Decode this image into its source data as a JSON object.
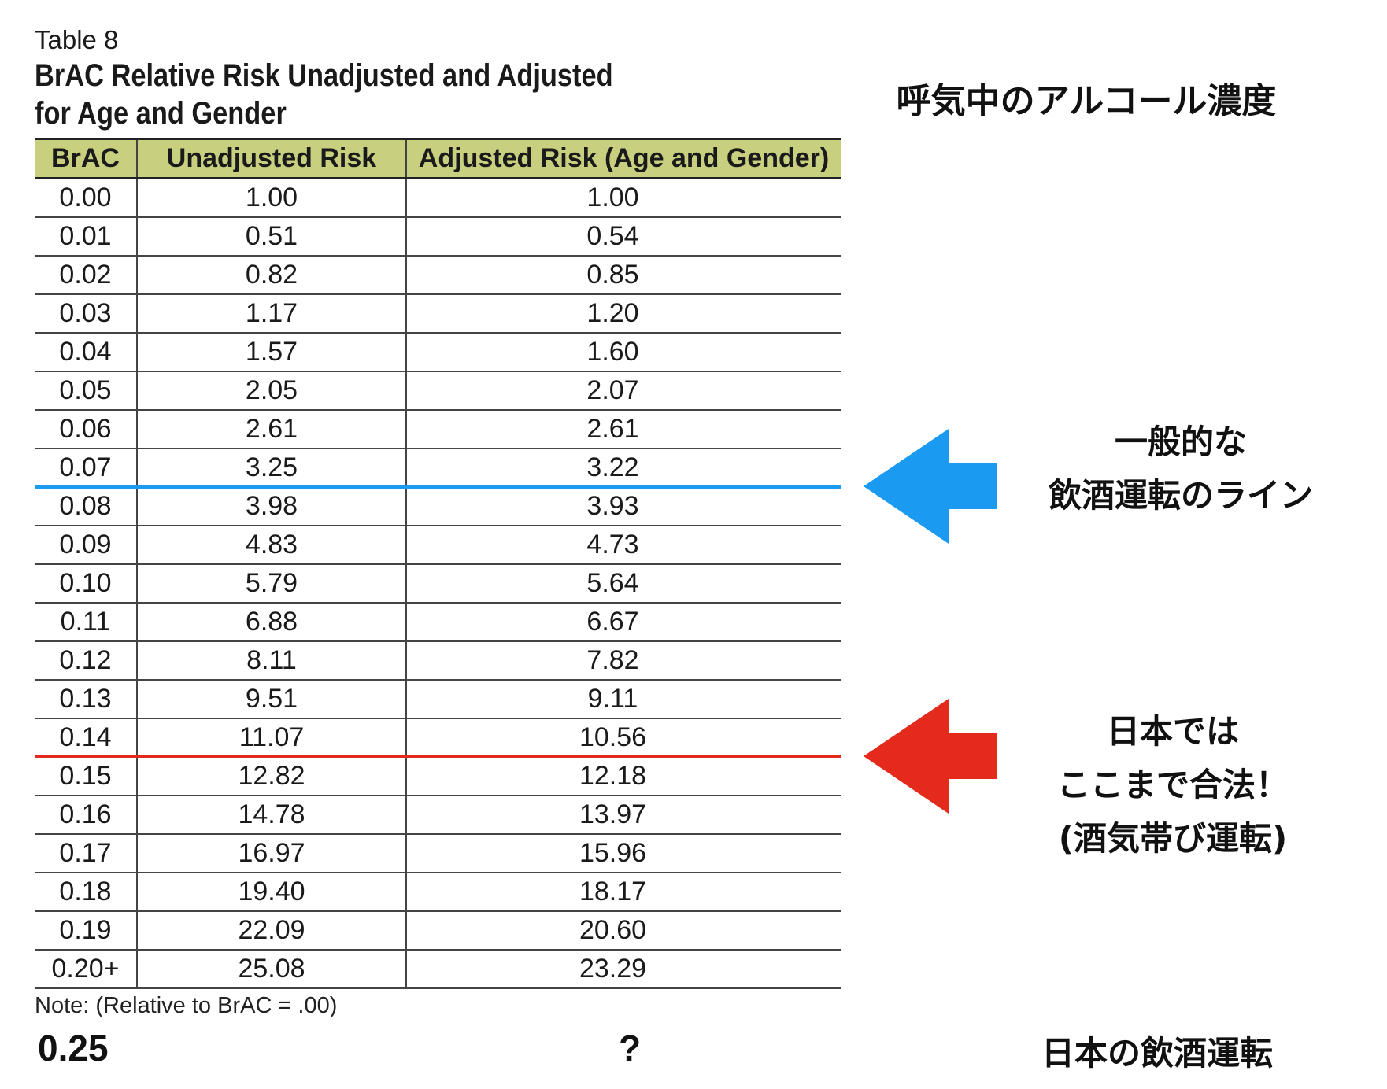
{
  "table_label": "Table 8",
  "table_title": "BrAC Relative Risk Unadjusted and Adjusted for Age and Gender",
  "headers": {
    "brac": "BrAC",
    "unadjusted": "Unadjusted Risk",
    "adjusted": "Adjusted Risk (Age and Gender)"
  },
  "rows": [
    {
      "brac": "0.00",
      "unadjusted": "1.00",
      "adjusted": "1.00"
    },
    {
      "brac": "0.01",
      "unadjusted": "0.51",
      "adjusted": "0.54"
    },
    {
      "brac": "0.02",
      "unadjusted": "0.82",
      "adjusted": "0.85"
    },
    {
      "brac": "0.03",
      "unadjusted": "1.17",
      "adjusted": "1.20"
    },
    {
      "brac": "0.04",
      "unadjusted": "1.57",
      "adjusted": "1.60"
    },
    {
      "brac": "0.05",
      "unadjusted": "2.05",
      "adjusted": "2.07"
    },
    {
      "brac": "0.06",
      "unadjusted": "2.61",
      "adjusted": "2.61"
    },
    {
      "brac": "0.07",
      "unadjusted": "3.25",
      "adjusted": "3.22"
    },
    {
      "brac": "0.08",
      "unadjusted": "3.98",
      "adjusted": "3.93"
    },
    {
      "brac": "0.09",
      "unadjusted": "4.83",
      "adjusted": "4.73"
    },
    {
      "brac": "0.10",
      "unadjusted": "5.79",
      "adjusted": "5.64"
    },
    {
      "brac": "0.11",
      "unadjusted": "6.88",
      "adjusted": "6.67"
    },
    {
      "brac": "0.12",
      "unadjusted": "8.11",
      "adjusted": "7.82"
    },
    {
      "brac": "0.13",
      "unadjusted": "9.51",
      "adjusted": "9.11"
    },
    {
      "brac": "0.14",
      "unadjusted": "11.07",
      "adjusted": "10.56"
    },
    {
      "brac": "0.15",
      "unadjusted": "12.82",
      "adjusted": "12.18"
    },
    {
      "brac": "0.16",
      "unadjusted": "14.78",
      "adjusted": "13.97"
    },
    {
      "brac": "0.17",
      "unadjusted": "16.97",
      "adjusted": "15.96"
    },
    {
      "brac": "0.18",
      "unadjusted": "19.40",
      "adjusted": "18.17"
    },
    {
      "brac": "0.19",
      "unadjusted": "22.09",
      "adjusted": "20.60"
    },
    {
      "brac": "0.20+",
      "unadjusted": "25.08",
      "adjusted": "23.29"
    }
  ],
  "note": "Note: (Relative to BrAC = .00)",
  "annotations": {
    "header": "呼気中のアルコール濃度",
    "general_line": [
      "一般的な",
      "飲酒運転のライン"
    ],
    "japan_legal": [
      "日本では",
      "ここまで合法！",
      "(酒気帯び運転)"
    ],
    "footer_left": "0.25",
    "footer_mid": "?",
    "footer_right": "日本の飲酒運転"
  },
  "colors": {
    "header_bg": "#c8cf7e",
    "blue_line": "#1a9af0",
    "red_line": "#e32a1c"
  },
  "icons": {
    "blue_arrow": "left-arrow-icon",
    "red_arrow": "left-arrow-icon"
  }
}
